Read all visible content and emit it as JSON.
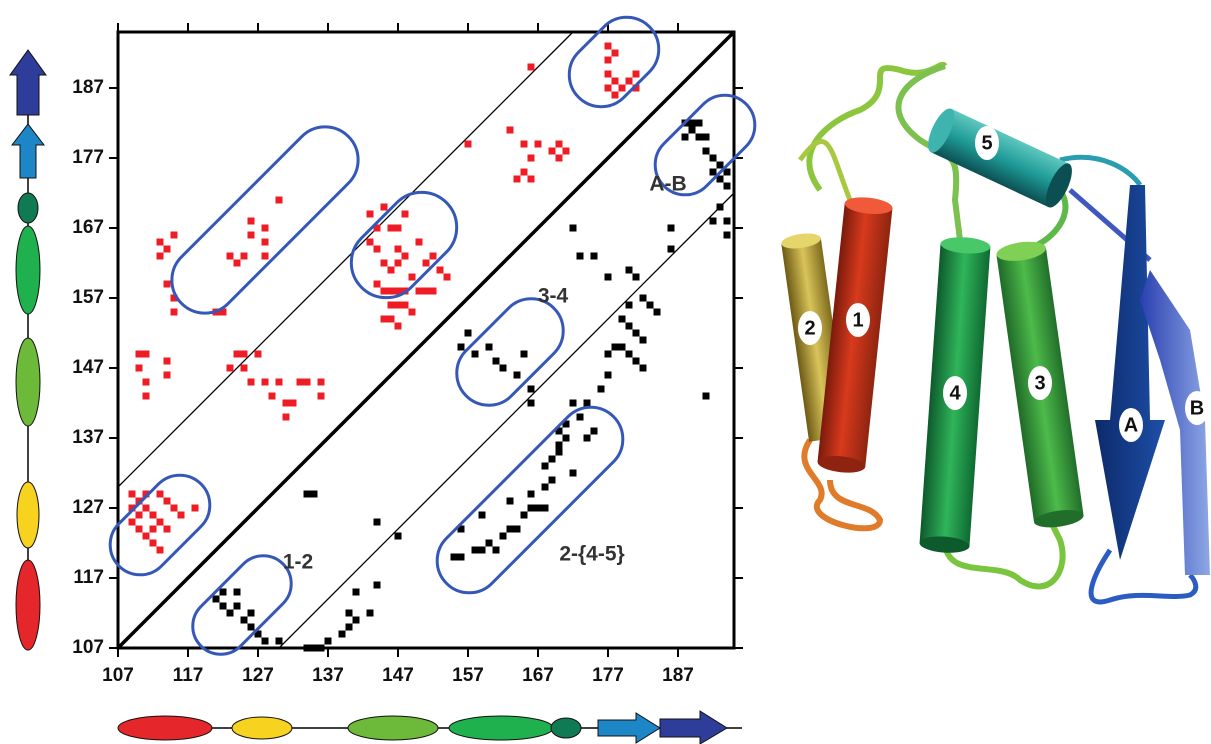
{
  "chart_data": {
    "type": "scatter",
    "xlim": [
      107,
      195
    ],
    "ylim": [
      107,
      195
    ],
    "xticks": [
      107,
      117,
      127,
      137,
      147,
      157,
      167,
      177,
      187
    ],
    "yticks": [
      107,
      117,
      127,
      137,
      147,
      157,
      167,
      177,
      187
    ],
    "annotations": [
      "A-B",
      "3-4",
      "1-2",
      "2-{4-5}"
    ],
    "series": [
      {
        "color": "#ee1c24",
        "x": [
          109,
          109,
          109,
          110,
          110,
          110,
          111,
          111,
          112,
          112,
          112,
          113,
          113,
          114,
          114,
          115,
          116,
          118,
          113,
          111,
          110,
          111,
          110,
          111,
          114,
          114,
          111,
          113,
          113,
          114,
          115,
          114,
          115,
          115,
          121,
          122,
          123,
          124,
          125,
          126,
          126,
          128,
          128,
          128,
          130,
          124,
          125,
          127,
          125,
          126,
          128,
          130,
          131,
          132,
          131,
          134,
          133,
          123,
          129,
          136,
          136,
          143,
          144,
          145,
          146,
          147,
          148,
          143,
          144,
          147,
          148,
          150,
          145,
          146,
          147,
          149,
          151,
          152,
          153,
          154,
          144,
          145,
          146,
          147,
          148,
          150,
          151,
          152,
          146,
          147,
          148,
          145,
          146,
          147,
          149,
          163,
          165,
          167,
          169,
          170,
          171,
          166,
          170,
          165,
          164,
          166,
          157,
          177,
          177,
          178,
          177,
          178,
          179,
          180,
          181,
          181,
          177,
          178,
          166
        ],
        "values": [
          129,
          127,
          125,
          128,
          126,
          124,
          127,
          123,
          126,
          124,
          122,
          125,
          121,
          128,
          124,
          127,
          126,
          127,
          129,
          129,
          149,
          149,
          147,
          145,
          148,
          146,
          143,
          165,
          163,
          164,
          166,
          159,
          157,
          155,
          155,
          155,
          163,
          162,
          163,
          166,
          168,
          167,
          165,
          163,
          171,
          149,
          149,
          149,
          147,
          145,
          145,
          145,
          142,
          142,
          140,
          145,
          145,
          147,
          143,
          145,
          143,
          169,
          167,
          170,
          167,
          167,
          169,
          165,
          164,
          164,
          163,
          165,
          162,
          161,
          162,
          160,
          162,
          163,
          161,
          160,
          159,
          158,
          158,
          158,
          158,
          158,
          158,
          158,
          156,
          156,
          156,
          154,
          154,
          153,
          155,
          181,
          179,
          179,
          178,
          179,
          178,
          177,
          177,
          175,
          174,
          174,
          179,
          193,
          191,
          192,
          189,
          188,
          187,
          188,
          189,
          187,
          187,
          186,
          190
        ]
      },
      {
        "color": "#000000",
        "x": [
          121,
          122,
          124,
          123,
          125,
          126,
          127,
          128,
          130,
          122,
          124,
          126,
          134,
          135,
          136,
          137,
          139,
          140,
          141,
          140,
          143,
          141,
          144,
          134,
          135,
          144,
          147,
          155,
          156,
          158,
          159,
          160,
          162,
          163,
          164,
          165,
          166,
          167,
          166,
          168,
          169,
          168,
          169,
          170,
          170,
          171,
          170,
          171,
          173,
          172,
          174,
          175,
          168,
          163,
          161,
          159,
          156,
          156,
          157,
          158,
          160,
          161,
          162,
          165,
          166,
          164,
          166,
          172,
          174,
          176,
          177,
          172,
          173,
          175,
          177,
          180,
          181,
          182,
          183,
          184,
          180,
          181,
          182,
          179,
          178,
          177,
          180,
          181,
          182,
          179,
          180,
          186,
          191,
          186,
          188,
          189,
          190,
          189,
          190,
          191,
          191,
          192,
          193,
          192,
          193,
          194,
          194,
          193,
          194,
          194,
          192,
          188
        ],
        "values": [
          114,
          113,
          113,
          112,
          111,
          110,
          109,
          108,
          108,
          115,
          115,
          112,
          107,
          107,
          107,
          108,
          109,
          110,
          111,
          112,
          112,
          115,
          116,
          129,
          129,
          125,
          123,
          120,
          120,
          121,
          121,
          122,
          123,
          124,
          124,
          126,
          127,
          127,
          129,
          130,
          131,
          133,
          134,
          135,
          136,
          137,
          138,
          139,
          140,
          132,
          137,
          138,
          127,
          128,
          121,
          126,
          124,
          150,
          152,
          149,
          150,
          148,
          147,
          149,
          144,
          146,
          142,
          142,
          142,
          144,
          146,
          167,
          163,
          163,
          160,
          161,
          160,
          157,
          156,
          155,
          153,
          152,
          151,
          150,
          150,
          149,
          149,
          148,
          147,
          154,
          156,
          164,
          143,
          167,
          182,
          181,
          180,
          182,
          182,
          180,
          178,
          177,
          176,
          175,
          174,
          173,
          175,
          170,
          168,
          166,
          168,
          180
        ]
      }
    ]
  },
  "structure": {
    "labels": [
      "1",
      "2",
      "3",
      "4",
      "5",
      "A",
      "B"
    ]
  }
}
